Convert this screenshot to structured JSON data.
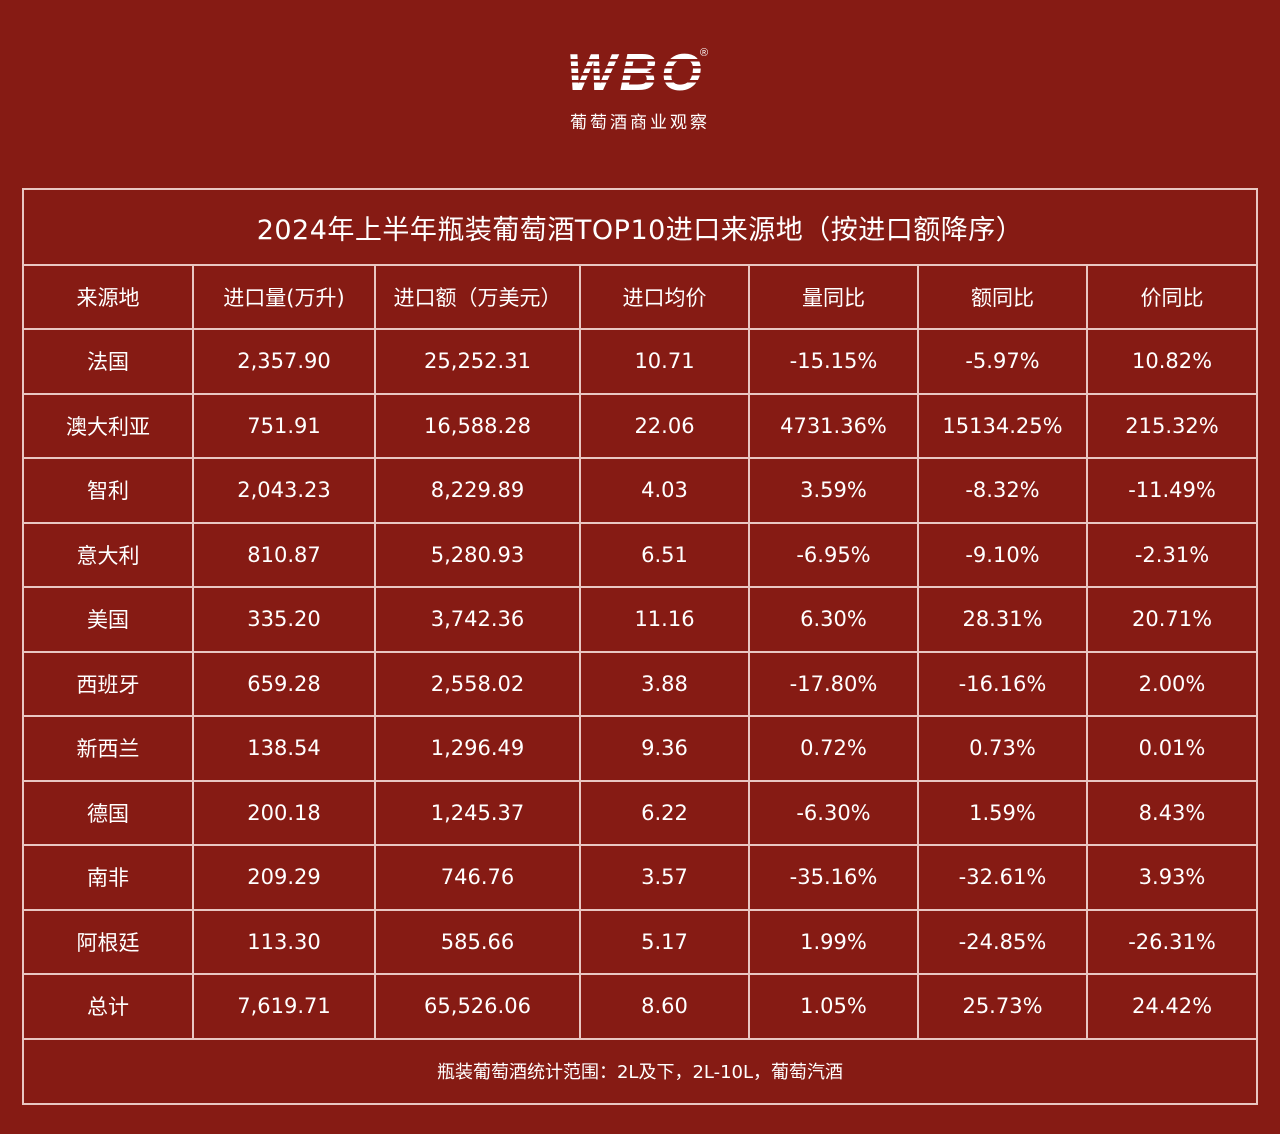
{
  "logo": {
    "mark": "WBO",
    "registered": "®",
    "tagline": "葡萄酒商业观察"
  },
  "table": {
    "title": "2024年上半年瓶装葡萄酒TOP10进口来源地（按进口额降序）",
    "columns": [
      "来源地",
      "进口量(万升)",
      "进口额（万美元）",
      "进口均价",
      "量同比",
      "额同比",
      "价同比"
    ],
    "rows": [
      [
        "法国",
        "2,357.90",
        "25,252.31",
        "10.71",
        "-15.15%",
        "-5.97%",
        "10.82%"
      ],
      [
        "澳大利亚",
        "751.91",
        "16,588.28",
        "22.06",
        "4731.36%",
        "15134.25%",
        "215.32%"
      ],
      [
        "智利",
        "2,043.23",
        "8,229.89",
        "4.03",
        "3.59%",
        "-8.32%",
        "-11.49%"
      ],
      [
        "意大利",
        "810.87",
        "5,280.93",
        "6.51",
        "-6.95%",
        "-9.10%",
        "-2.31%"
      ],
      [
        "美国",
        "335.20",
        "3,742.36",
        "11.16",
        "6.30%",
        "28.31%",
        "20.71%"
      ],
      [
        "西班牙",
        "659.28",
        "2,558.02",
        "3.88",
        "-17.80%",
        "-16.16%",
        "2.00%"
      ],
      [
        "新西兰",
        "138.54",
        "1,296.49",
        "9.36",
        "0.72%",
        "0.73%",
        "0.01%"
      ],
      [
        "德国",
        "200.18",
        "1,245.37",
        "6.22",
        "-6.30%",
        "1.59%",
        "8.43%"
      ],
      [
        "南非",
        "209.29",
        "746.76",
        "3.57",
        "-35.16%",
        "-32.61%",
        "3.93%"
      ],
      [
        "阿根廷",
        "113.30",
        "585.66",
        "5.17",
        "1.99%",
        "-24.85%",
        "-26.31%"
      ],
      [
        "总计",
        "7,619.71",
        "65,526.06",
        "8.60",
        "1.05%",
        "25.73%",
        "24.42%"
      ]
    ],
    "footnote": "瓶装葡萄酒统计范围：2L及下，2L-10L，葡萄汽酒"
  },
  "colors": {
    "background": "#861b14",
    "border": "#e9c7c2",
    "text": "#ffffff"
  }
}
